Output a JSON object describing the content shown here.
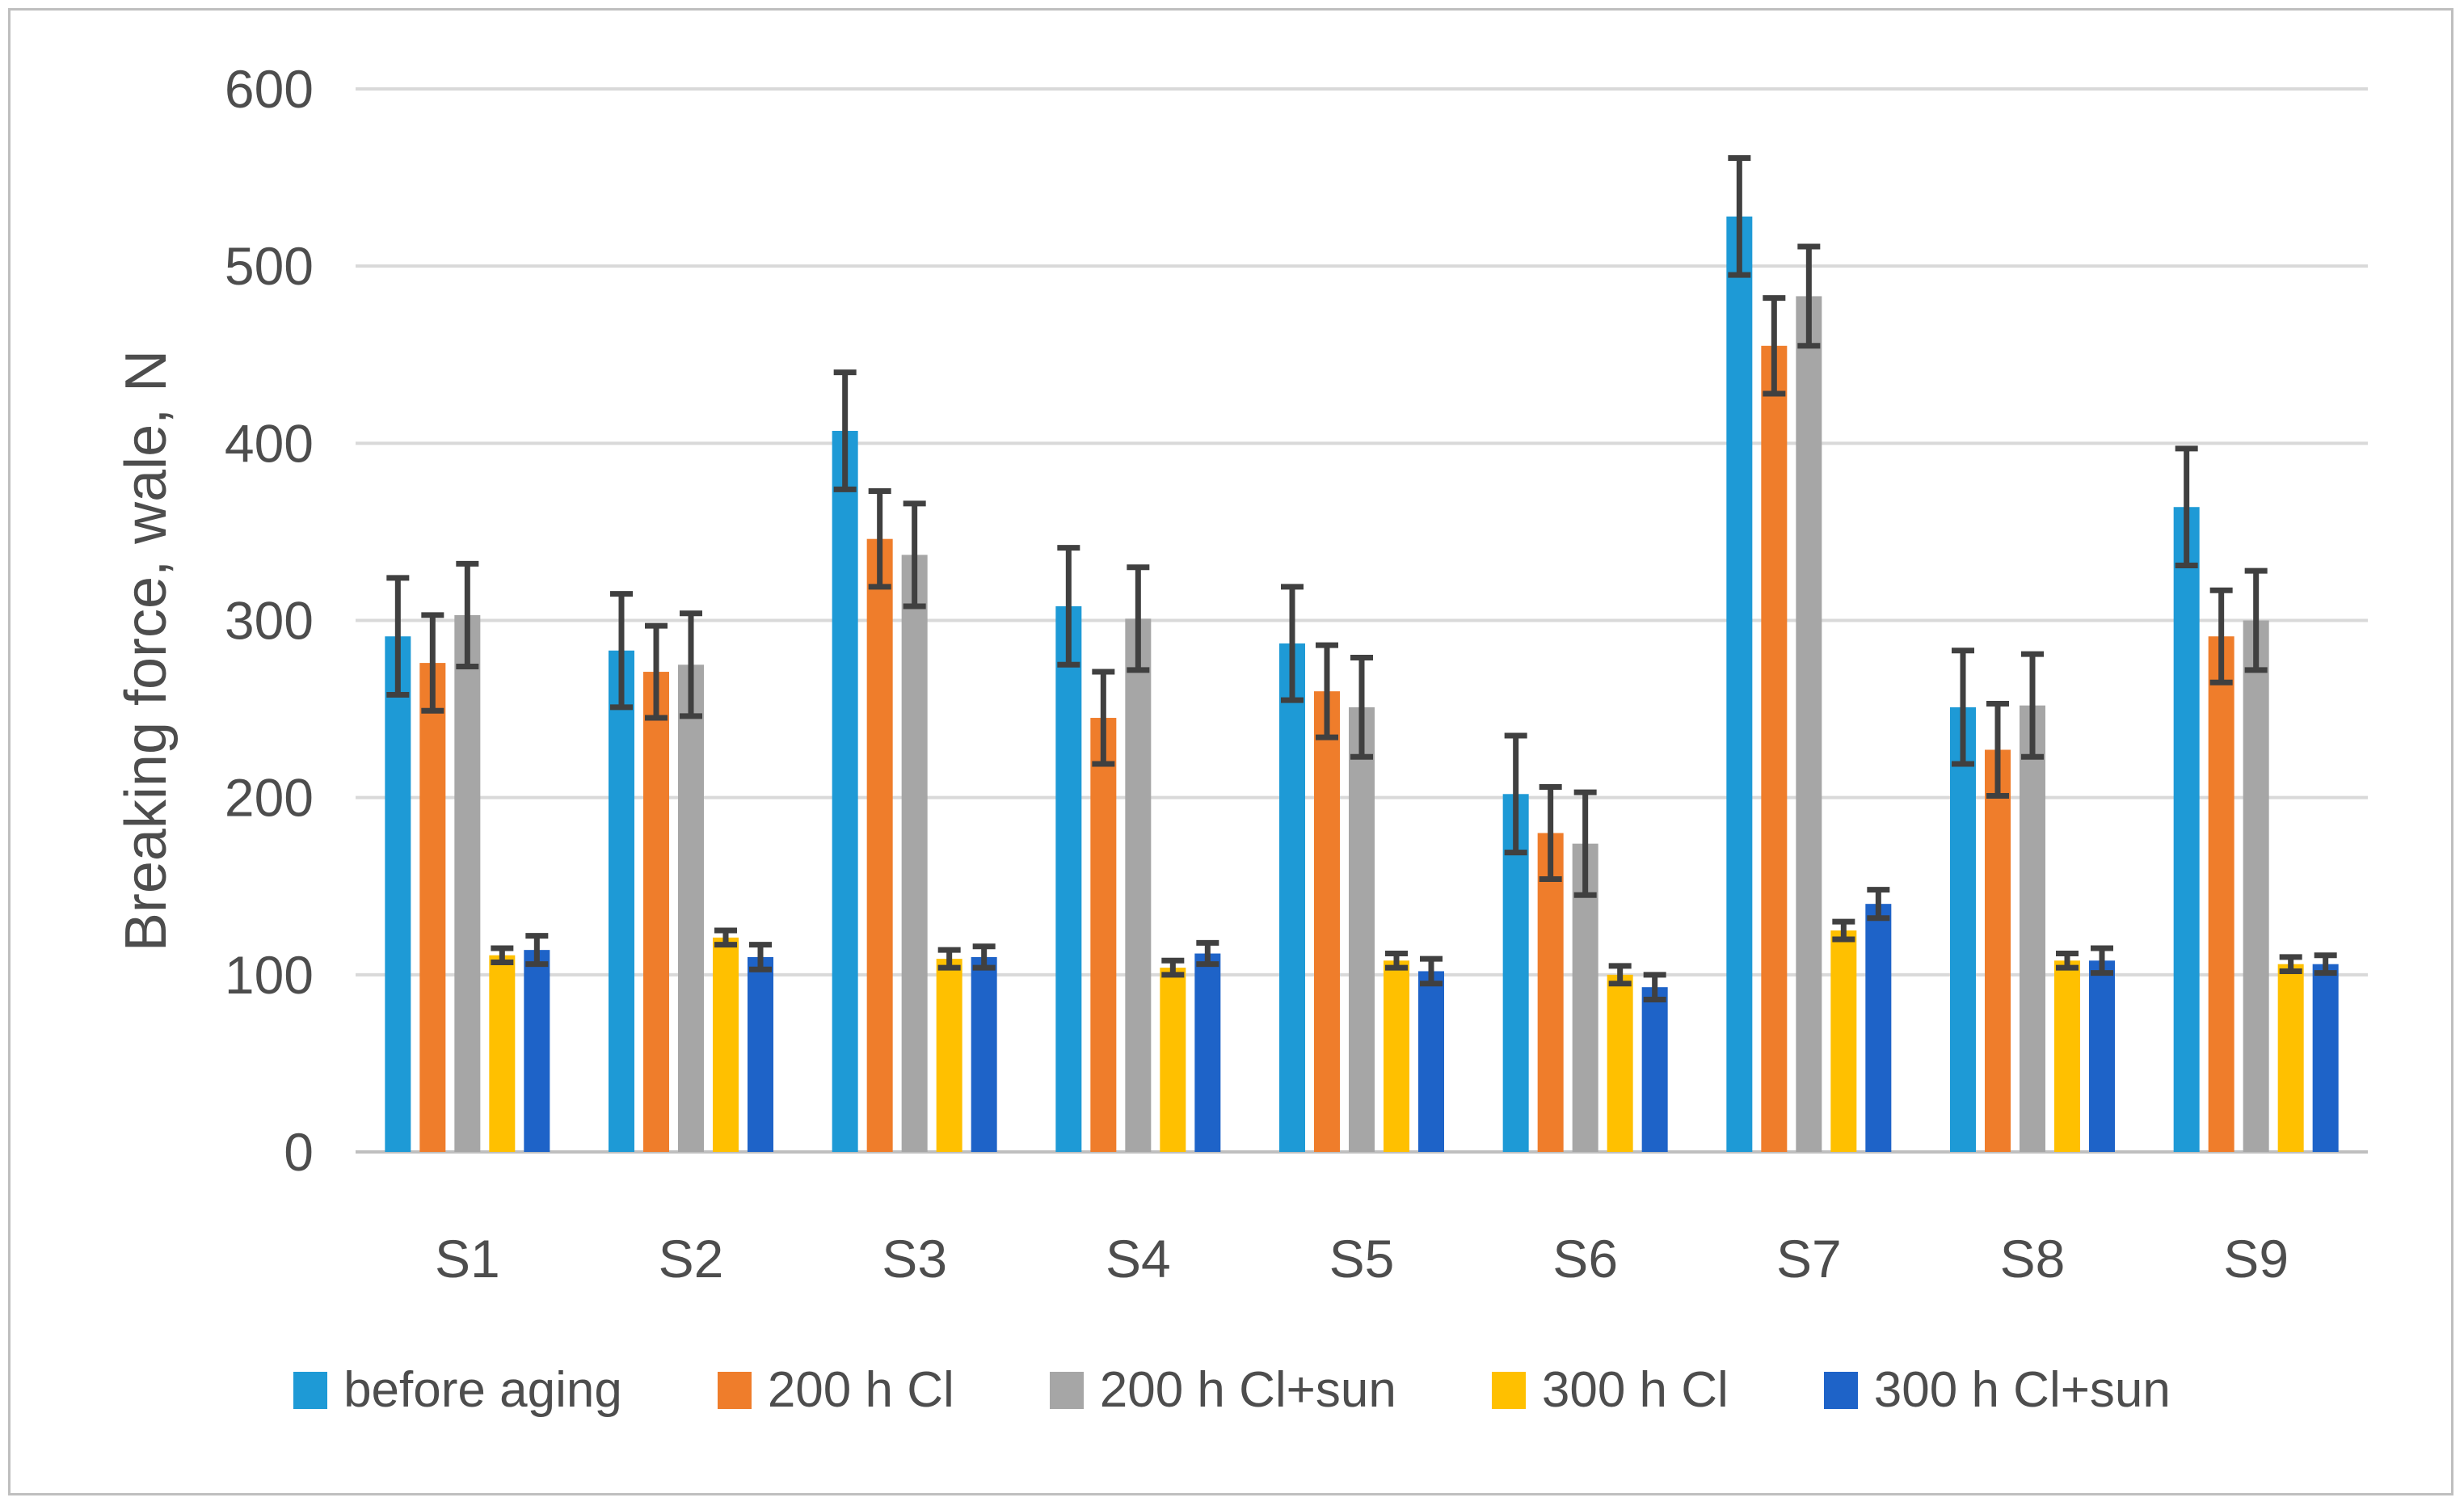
{
  "figure": {
    "background": "#ffffff",
    "border_color": "#bfbfbf"
  },
  "colors": {
    "gridline": "#d9d9d9",
    "axis_line": "#bfbfbf",
    "tick_text": "#4d4d4d",
    "error_bar": "#404040"
  },
  "chart_data": {
    "type": "bar",
    "title": "",
    "xlabel": "",
    "ylabel": "Breaking force, wale, N",
    "ylim": [
      0,
      600
    ],
    "yticks": [
      0,
      100,
      200,
      300,
      400,
      500,
      600
    ],
    "grid": true,
    "legend_position": "bottom",
    "categories": [
      "S1",
      "S2",
      "S3",
      "S4",
      "S5",
      "S6",
      "S7",
      "S8",
      "S9"
    ],
    "series": [
      {
        "name": "before aging",
        "color": "#1e9ad6",
        "values": [
          291,
          283,
          407,
          308,
          287,
          202,
          528,
          251,
          364
        ],
        "errors": [
          33,
          32,
          33,
          33,
          32,
          33,
          33,
          32,
          33
        ]
      },
      {
        "name": "200 h Cl",
        "color": "#ef7d2b",
        "values": [
          276,
          271,
          346,
          245,
          260,
          180,
          455,
          227,
          291
        ],
        "errors": [
          27,
          26,
          27,
          26,
          26,
          26,
          27,
          26,
          26
        ]
      },
      {
        "name": "200 h Cl+sun",
        "color": "#a6a6a6",
        "values": [
          303,
          275,
          337,
          301,
          251,
          174,
          483,
          252,
          300
        ],
        "errors": [
          29,
          29,
          29,
          29,
          28,
          29,
          28,
          29,
          28
        ]
      },
      {
        "name": "300 h Cl",
        "color": "#ffc000",
        "values": [
          111,
          121,
          109,
          104,
          108,
          100,
          125,
          108,
          106
        ],
        "errors": [
          4,
          4,
          5,
          4,
          4,
          5,
          5,
          4,
          4
        ]
      },
      {
        "name": "300 h Cl+sun",
        "color": "#1e63c8",
        "values": [
          114,
          110,
          110,
          112,
          102,
          93,
          140,
          108,
          106
        ],
        "errors": [
          8,
          7,
          6,
          6,
          7,
          7,
          8,
          7,
          5
        ]
      }
    ]
  }
}
